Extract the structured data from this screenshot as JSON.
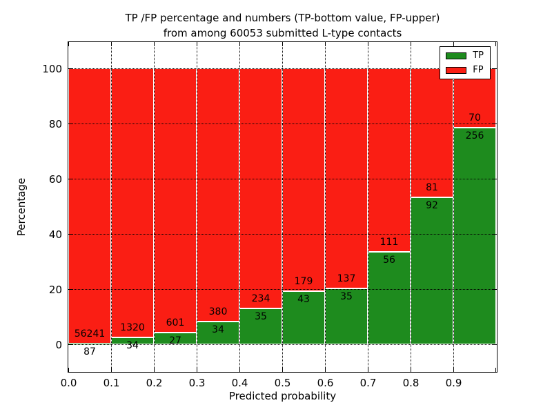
{
  "figure": {
    "title_line1": "TP /FP percentage and numbers (TP-bottom value, FP-upper)",
    "title_line2": "from among 60053 submitted L-type contacts"
  },
  "chart_data": {
    "type": "bar",
    "stacked": true,
    "title": "TP /FP percentage and numbers (TP-bottom value, FP-upper)\nfrom among 60053 submitted L-type contacts",
    "xlabel": "Predicted probability",
    "ylabel": "Percentage",
    "xlim": [
      0.0,
      1.0
    ],
    "ylim": [
      -10,
      110
    ],
    "grid": true,
    "grid_style": "dotted",
    "legend_position": "upper right",
    "total_contacts": 60053,
    "categories": [
      "0.0-0.1",
      "0.1-0.2",
      "0.2-0.3",
      "0.3-0.4",
      "0.4-0.5",
      "0.5-0.6",
      "0.6-0.7",
      "0.7-0.8",
      "0.8-0.9",
      "0.9-1.0"
    ],
    "series": [
      {
        "name": "TP",
        "color": "#1e8b1e",
        "values": [
          87,
          34,
          27,
          34,
          35,
          43,
          35,
          56,
          92,
          256
        ]
      },
      {
        "name": "FP",
        "color": "#fa1e14",
        "values": [
          56241,
          1320,
          601,
          380,
          234,
          179,
          137,
          111,
          81,
          70
        ]
      }
    ],
    "tp_percent_of_bin": [
      0.15,
      2.51,
      4.3,
      8.21,
      13.01,
      19.37,
      20.35,
      33.53,
      53.18,
      78.53
    ],
    "xtick_labels": [
      "0.0",
      "0.1",
      "0.2",
      "0.3",
      "0.4",
      "0.5",
      "0.6",
      "0.7",
      "0.8",
      "0.9"
    ],
    "ytick_values": [
      0,
      20,
      40,
      60,
      80,
      100
    ],
    "edge_color": "#ffffff"
  },
  "legend": {
    "items": [
      {
        "label": "TP",
        "color": "#1e8b1e"
      },
      {
        "label": "FP",
        "color": "#fa1e14"
      }
    ]
  }
}
